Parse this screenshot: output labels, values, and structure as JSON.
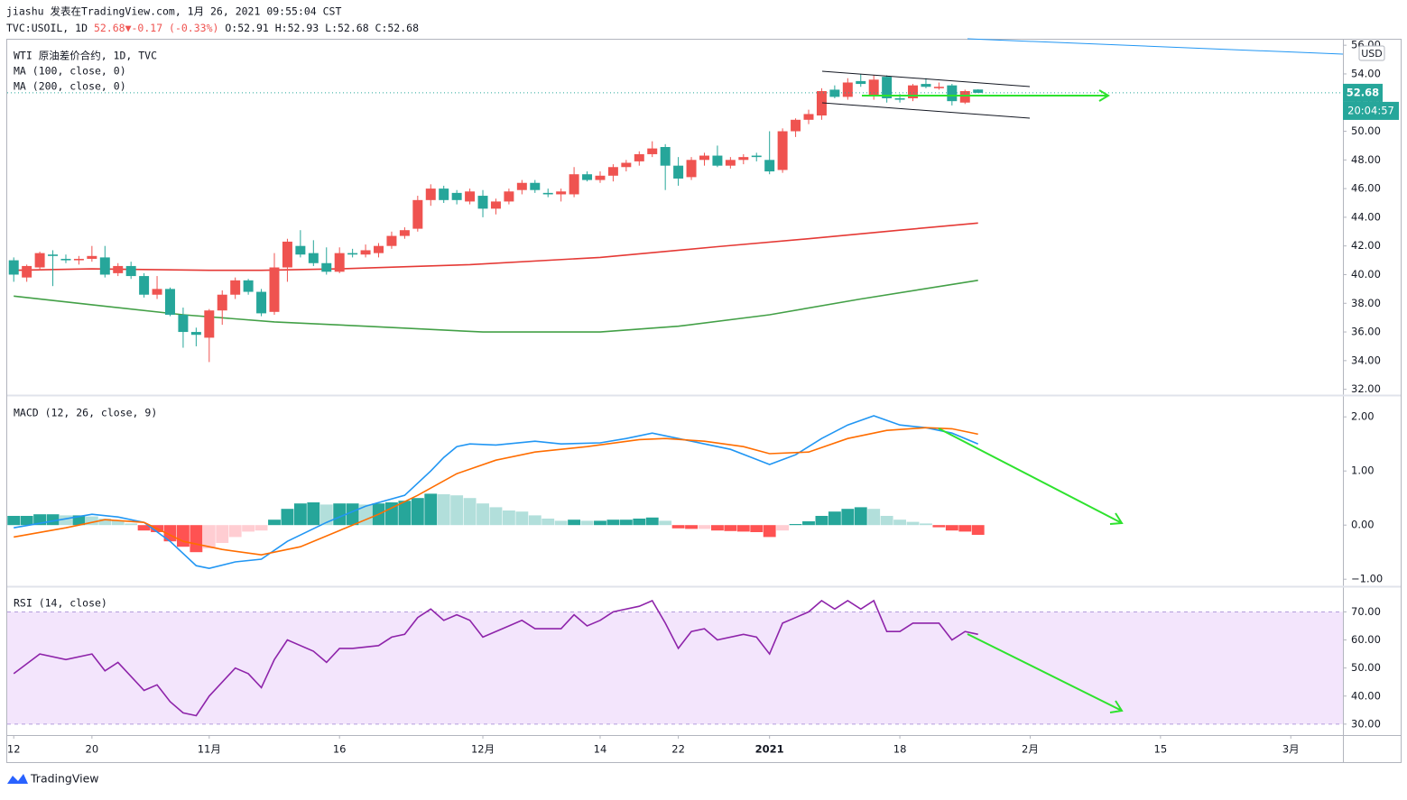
{
  "header": {
    "line1": "jiashu 发表在TradingView.com, 1月 26, 2021 09:55:04 CST",
    "symbol": "TVC:USOIL, 1D",
    "quote": "52.68▼-0.17 (-0.33%)",
    "ohlc_text": "O:52.91 H:52.93 L:52.68 C:52.68"
  },
  "footer": "TradingView",
  "chart_data": [
    {
      "type": "candlestick",
      "title": "WTI 原油差价合约, 1D, TVC",
      "up_color": "#ef5350",
      "down_color": "#26a69a",
      "last_price_label": "52.68",
      "countdown": "20:04:57",
      "currency": "USD",
      "xlim": [
        -0.5,
        102
      ],
      "xticks": [
        {
          "value": 0,
          "label": "12"
        },
        {
          "value": 6,
          "label": "20"
        },
        {
          "value": 15,
          "label": "11月"
        },
        {
          "value": 25,
          "label": "16"
        },
        {
          "value": 36,
          "label": "12月"
        },
        {
          "value": 45,
          "label": "14"
        },
        {
          "value": 51,
          "label": "22"
        },
        {
          "value": 58,
          "label": "2021"
        },
        {
          "value": 68,
          "label": "18"
        },
        {
          "value": 78,
          "label": "2月"
        },
        {
          "value": 88,
          "label": "15"
        },
        {
          "value": 98,
          "label": "3月"
        }
      ],
      "ylim": [
        31.6,
        56.45
      ],
      "yticks": [
        {
          "value": 32,
          "label": "32.00"
        },
        {
          "value": 34,
          "label": "34.00"
        },
        {
          "value": 36,
          "label": "36.00"
        },
        {
          "value": 38,
          "label": "38.00"
        },
        {
          "value": 40,
          "label": "40.00"
        },
        {
          "value": 42,
          "label": "42.00"
        },
        {
          "value": 44,
          "label": "44.00"
        },
        {
          "value": 46,
          "label": "46.00"
        },
        {
          "value": 48,
          "label": "48.00"
        },
        {
          "value": 50,
          "label": "50.00"
        },
        {
          "value": 52,
          "label": "52.00"
        },
        {
          "value": 54,
          "label": "54.00"
        },
        {
          "value": 56,
          "label": "56.00"
        }
      ],
      "ohlc": [
        [
          41.0,
          41.2,
          39.5,
          40.0
        ],
        [
          39.8,
          40.7,
          39.5,
          40.6
        ],
        [
          40.5,
          41.6,
          40.3,
          41.5
        ],
        [
          41.4,
          41.7,
          39.2,
          41.3
        ],
        [
          41.1,
          41.4,
          40.8,
          41.0
        ],
        [
          41.0,
          41.3,
          40.7,
          41.1
        ],
        [
          41.1,
          42.0,
          40.9,
          41.3
        ],
        [
          41.2,
          42.0,
          39.8,
          40.0
        ],
        [
          40.1,
          40.8,
          39.9,
          40.6
        ],
        [
          40.6,
          40.9,
          39.7,
          39.9
        ],
        [
          39.9,
          40.1,
          38.4,
          38.6
        ],
        [
          38.6,
          39.9,
          38.3,
          39.0
        ],
        [
          39.0,
          39.1,
          37.1,
          37.2
        ],
        [
          37.2,
          37.7,
          34.9,
          36.0
        ],
        [
          36.0,
          36.3,
          35.0,
          35.8
        ],
        [
          35.6,
          37.6,
          33.9,
          37.5
        ],
        [
          37.5,
          38.9,
          36.5,
          38.6
        ],
        [
          38.6,
          39.8,
          38.3,
          39.6
        ],
        [
          39.6,
          39.7,
          38.6,
          38.8
        ],
        [
          38.8,
          39.0,
          37.1,
          37.3
        ],
        [
          37.4,
          41.5,
          37.2,
          40.5
        ],
        [
          40.5,
          42.5,
          39.5,
          42.3
        ],
        [
          42.0,
          43.1,
          41.2,
          41.4
        ],
        [
          41.5,
          42.4,
          40.6,
          40.8
        ],
        [
          40.8,
          41.9,
          40.0,
          40.2
        ],
        [
          40.2,
          41.9,
          40.1,
          41.5
        ],
        [
          41.5,
          41.8,
          41.2,
          41.4
        ],
        [
          41.4,
          42.1,
          41.2,
          41.7
        ],
        [
          41.5,
          42.2,
          41.2,
          42.0
        ],
        [
          42.0,
          43.0,
          41.8,
          42.7
        ],
        [
          42.7,
          43.3,
          42.5,
          43.1
        ],
        [
          43.2,
          45.5,
          43.0,
          45.2
        ],
        [
          45.2,
          46.3,
          44.8,
          46.0
        ],
        [
          46.0,
          46.2,
          45.0,
          45.2
        ],
        [
          45.7,
          45.9,
          44.9,
          45.2
        ],
        [
          45.1,
          46.0,
          44.9,
          45.8
        ],
        [
          45.5,
          45.9,
          44.0,
          44.6
        ],
        [
          44.6,
          45.3,
          44.2,
          45.1
        ],
        [
          45.1,
          46.0,
          44.9,
          45.8
        ],
        [
          45.9,
          46.6,
          45.6,
          46.4
        ],
        [
          46.4,
          46.6,
          45.7,
          45.9
        ],
        [
          45.7,
          46.0,
          45.4,
          45.6
        ],
        [
          45.6,
          46.0,
          45.1,
          45.8
        ],
        [
          45.6,
          47.5,
          45.4,
          47.0
        ],
        [
          47.0,
          47.2,
          46.5,
          46.6
        ],
        [
          46.6,
          47.2,
          46.4,
          46.9
        ],
        [
          46.9,
          47.7,
          46.5,
          47.5
        ],
        [
          47.5,
          48.0,
          47.2,
          47.8
        ],
        [
          47.9,
          48.6,
          47.6,
          48.4
        ],
        [
          48.4,
          49.3,
          48.2,
          48.8
        ],
        [
          48.9,
          49.1,
          45.9,
          47.6
        ],
        [
          47.6,
          48.2,
          46.2,
          46.7
        ],
        [
          46.8,
          48.2,
          46.6,
          48.0
        ],
        [
          48.0,
          48.5,
          47.6,
          48.3
        ],
        [
          48.3,
          49.0,
          47.5,
          47.6
        ],
        [
          47.6,
          48.2,
          47.4,
          48.0
        ],
        [
          48.0,
          48.4,
          47.7,
          48.2
        ],
        [
          48.3,
          48.5,
          47.9,
          48.2
        ],
        [
          48.0,
          50.0,
          47.0,
          47.2
        ],
        [
          47.3,
          50.2,
          47.1,
          50.0
        ],
        [
          50.0,
          50.9,
          49.6,
          50.8
        ],
        [
          50.8,
          51.5,
          50.5,
          51.2
        ],
        [
          51.1,
          53.0,
          50.8,
          52.8
        ],
        [
          52.9,
          53.2,
          52.3,
          52.4
        ],
        [
          52.4,
          53.7,
          52.2,
          53.4
        ],
        [
          53.5,
          54.0,
          53.1,
          53.3
        ],
        [
          52.5,
          53.9,
          52.2,
          53.6
        ],
        [
          53.8,
          53.9,
          52.0,
          52.3
        ],
        [
          52.3,
          52.6,
          52.0,
          52.2
        ],
        [
          52.3,
          53.3,
          52.1,
          53.2
        ],
        [
          53.3,
          53.7,
          53.0,
          53.1
        ],
        [
          53.0,
          53.4,
          52.9,
          53.1
        ],
        [
          53.2,
          53.3,
          51.8,
          52.1
        ],
        [
          52.0,
          52.9,
          51.9,
          52.8
        ],
        [
          52.91,
          52.93,
          52.68,
          52.68
        ]
      ],
      "series": [
        {
          "name": "MA (100, close, 0)",
          "color": "#e53935",
          "x": [
            0,
            6,
            15,
            19,
            25,
            35,
            45,
            54,
            61,
            68,
            74
          ],
          "values": [
            40.3,
            40.4,
            40.3,
            40.3,
            40.4,
            40.7,
            41.2,
            41.95,
            42.5,
            43.1,
            43.6
          ]
        },
        {
          "name": "MA (200, close, 0)",
          "color": "#43a047",
          "x": [
            0,
            6,
            13,
            20,
            27,
            36,
            45,
            51,
            58,
            65,
            74
          ],
          "values": [
            38.5,
            37.9,
            37.2,
            36.7,
            36.4,
            36.0,
            36.0,
            36.4,
            37.2,
            38.3,
            39.6
          ]
        }
      ]
    },
    {
      "type": "macd",
      "title": "MACD (12, 26, close, 9)",
      "ylim": [
        -1.13,
        2.37
      ],
      "yticks": [
        {
          "value": -1,
          "label": "−1.00"
        },
        {
          "value": 0,
          "label": "0.00"
        },
        {
          "value": 1,
          "label": "1.00"
        },
        {
          "value": 2,
          "label": "2.00"
        }
      ],
      "histogram": {
        "colors": [
          "#26a69a",
          "#b2dfdb",
          "#ffcdd2",
          "#ff5252"
        ],
        "values": [
          0.17,
          0.17,
          0.2,
          0.2,
          0.18,
          0.18,
          0.16,
          0.12,
          0.08,
          0.03,
          -0.1,
          -0.13,
          -0.3,
          -0.4,
          -0.5,
          -0.43,
          -0.33,
          -0.22,
          -0.12,
          -0.1,
          0.1,
          0.3,
          0.4,
          0.42,
          0.38,
          0.4,
          0.4,
          0.38,
          0.4,
          0.42,
          0.45,
          0.5,
          0.58,
          0.57,
          0.55,
          0.5,
          0.4,
          0.33,
          0.27,
          0.25,
          0.18,
          0.12,
          0.08,
          0.1,
          0.08,
          0.08,
          0.1,
          0.1,
          0.12,
          0.14,
          0.08,
          -0.06,
          -0.07,
          -0.07,
          -0.1,
          -0.11,
          -0.12,
          -0.13,
          -0.22,
          -0.1,
          0.02,
          0.07,
          0.17,
          0.25,
          0.3,
          0.33,
          0.3,
          0.17,
          0.1,
          0.06,
          0.03,
          -0.04,
          -0.1,
          -0.12,
          -0.18
        ]
      },
      "series": [
        {
          "color": "#2196f3",
          "x": [
            0,
            6,
            8,
            10,
            12,
            14,
            15,
            17,
            19,
            21,
            24,
            27,
            30,
            32,
            33,
            34,
            35,
            37,
            40,
            42,
            45,
            47,
            49,
            51,
            53,
            55,
            58,
            60,
            62,
            64,
            66,
            68,
            70,
            72,
            74
          ],
          "values": [
            -0.05,
            0.2,
            0.15,
            0.05,
            -0.3,
            -0.75,
            -0.8,
            -0.68,
            -0.63,
            -0.3,
            0.05,
            0.35,
            0.55,
            1.0,
            1.25,
            1.45,
            1.5,
            1.48,
            1.55,
            1.5,
            1.52,
            1.6,
            1.7,
            1.6,
            1.5,
            1.4,
            1.12,
            1.3,
            1.6,
            1.85,
            2.02,
            1.85,
            1.8,
            1.7,
            1.5
          ]
        },
        {
          "color": "#ff6d00",
          "x": [
            0,
            4,
            7,
            10,
            13,
            16,
            19,
            22,
            25,
            28,
            31,
            34,
            37,
            40,
            44,
            48,
            50,
            53,
            56,
            58,
            61,
            64,
            67,
            70,
            72,
            74
          ],
          "values": [
            -0.22,
            -0.05,
            0.1,
            0.05,
            -0.3,
            -0.45,
            -0.55,
            -0.4,
            -0.1,
            0.2,
            0.55,
            0.95,
            1.2,
            1.35,
            1.45,
            1.58,
            1.6,
            1.55,
            1.45,
            1.32,
            1.35,
            1.6,
            1.75,
            1.8,
            1.78,
            1.68
          ]
        }
      ]
    },
    {
      "type": "rsi",
      "title": "RSI (14, close)",
      "ylim": [
        26.1,
        78.5
      ],
      "band": [
        30,
        70
      ],
      "band_color": "#f3e5fc",
      "yticks": [
        {
          "value": 30,
          "label": "30.00"
        },
        {
          "value": 40,
          "label": "40.00"
        },
        {
          "value": 50,
          "label": "50.00"
        },
        {
          "value": 60,
          "label": "60.00"
        },
        {
          "value": 70,
          "label": "70.00"
        }
      ],
      "series": [
        {
          "color": "#8e24aa",
          "x": [
            0,
            2,
            4,
            6,
            7,
            8,
            10,
            11,
            12,
            13,
            14,
            15,
            17,
            18,
            19,
            20,
            21,
            23,
            24,
            25,
            26,
            28,
            29,
            30,
            31,
            32,
            33,
            34,
            35,
            36,
            38,
            39,
            40,
            42,
            43,
            44,
            45,
            46,
            48,
            49,
            50,
            51,
            52,
            53,
            54,
            56,
            57,
            58,
            59,
            60,
            61,
            62,
            63,
            64,
            65,
            66,
            67,
            68,
            69,
            70,
            71,
            72,
            73,
            74
          ],
          "values": [
            48,
            55,
            53,
            55,
            49,
            52,
            42,
            44,
            38,
            34,
            33,
            40,
            50,
            48,
            43,
            53,
            60,
            56,
            52,
            57,
            57,
            58,
            61,
            62,
            68,
            71,
            67,
            69,
            67,
            61,
            65,
            67,
            64,
            64,
            69,
            65,
            67,
            70,
            72,
            74,
            66,
            57,
            63,
            64,
            60,
            62,
            61,
            55,
            66,
            68,
            70,
            74,
            71,
            74,
            71,
            74,
            63,
            63,
            66,
            66,
            66,
            60,
            63,
            62
          ]
        }
      ]
    }
  ]
}
